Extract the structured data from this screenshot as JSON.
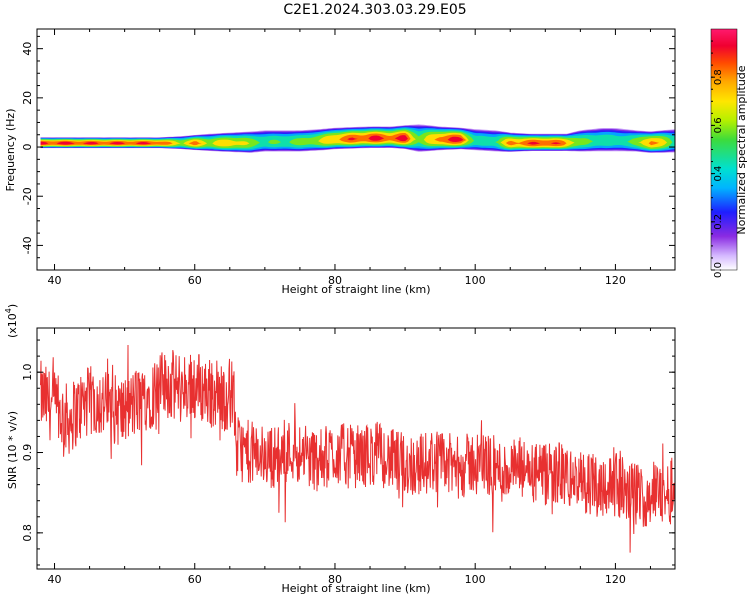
{
  "title": "C2E1.2024.303.03.29.E05",
  "chart_data": [
    {
      "type": "heatmap",
      "xlabel": "Height of straight line (km)",
      "ylabel": "Frequency (Hz)",
      "xlim": [
        37.5,
        128.5
      ],
      "ylim": [
        -50,
        48
      ],
      "xticks": [
        40,
        60,
        80,
        100,
        120
      ],
      "yticks": [
        40,
        20,
        0,
        -20,
        -40
      ],
      "grid": false,
      "colorbar": {
        "label": "Normalized spectral amplitude",
        "range": [
          0,
          1
        ],
        "ticks": [
          0.0,
          0.2,
          0.4,
          0.6,
          0.8
        ]
      },
      "band": {
        "x": [
          38,
          40,
          45,
          50,
          55,
          58,
          60,
          62,
          65,
          68,
          70,
          75,
          78,
          80,
          85,
          88,
          90,
          92,
          95,
          98,
          100,
          103,
          105,
          108,
          110,
          113,
          115,
          118,
          120,
          123,
          125,
          128.5
        ],
        "center_hz": [
          1.5,
          1.5,
          1.5,
          1.5,
          1.5,
          1.5,
          1.5,
          1.5,
          1.5,
          1.5,
          2,
          2,
          2.5,
          3,
          3.5,
          3.5,
          3.5,
          3,
          3,
          3,
          2.5,
          2,
          1.5,
          1.5,
          1.5,
          1.5,
          2,
          2.5,
          2.5,
          2,
          1.5,
          2
        ],
        "half_width_hz": [
          2.5,
          2.5,
          2.5,
          2.5,
          2.5,
          3,
          3.5,
          4,
          4.5,
          5,
          5,
          5,
          5,
          5,
          5,
          5,
          5.5,
          6.5,
          5.5,
          5,
          5,
          5,
          4.5,
          4,
          4,
          4,
          5,
          5.5,
          5.5,
          5,
          5,
          5.5
        ],
        "peak_amplitude": [
          0.95,
          0.95,
          0.93,
          0.93,
          0.92,
          0.7,
          0.85,
          0.7,
          0.8,
          0.65,
          0.55,
          0.6,
          0.7,
          0.85,
          0.95,
          0.9,
          0.95,
          0.6,
          0.9,
          0.95,
          0.5,
          0.55,
          0.85,
          0.9,
          0.95,
          0.85,
          0.6,
          0.55,
          0.5,
          0.6,
          0.9,
          0.55
        ]
      }
    },
    {
      "type": "line",
      "xlabel": "Height of straight line (km)",
      "ylabel": "SNR (10 * v/v)",
      "y_multiplier": "(x10",
      "y_multiplier_exp": "4",
      "xlim": [
        37.5,
        128.5
      ],
      "ylim": [
        0.755,
        1.055
      ],
      "xticks": [
        40,
        60,
        80,
        100,
        120
      ],
      "yticks": [
        1.0,
        0.9,
        0.8
      ],
      "grid": false,
      "series": [
        {
          "color": "#e83030",
          "x": [
            38,
            40,
            42,
            44,
            46,
            48,
            50,
            52,
            54,
            56,
            58,
            60,
            62,
            64,
            65.5,
            66,
            68,
            70,
            72,
            74,
            76,
            78,
            80,
            82,
            84,
            86,
            88,
            90,
            92,
            94,
            96,
            98,
            100,
            102,
            104,
            106,
            108,
            110,
            112,
            114,
            116,
            118,
            120,
            122,
            124,
            126,
            128.5
          ],
          "values": [
            0.97,
            0.955,
            0.94,
            0.96,
            0.965,
            0.955,
            0.95,
            0.965,
            0.975,
            0.985,
            0.98,
            0.985,
            0.975,
            0.97,
            0.975,
            0.905,
            0.9,
            0.895,
            0.895,
            0.905,
            0.895,
            0.89,
            0.9,
            0.895,
            0.895,
            0.9,
            0.89,
            0.885,
            0.885,
            0.89,
            0.885,
            0.88,
            0.89,
            0.885,
            0.875,
            0.88,
            0.875,
            0.87,
            0.875,
            0.865,
            0.86,
            0.86,
            0.86,
            0.85,
            0.845,
            0.85,
            0.85
          ]
        }
      ]
    }
  ]
}
